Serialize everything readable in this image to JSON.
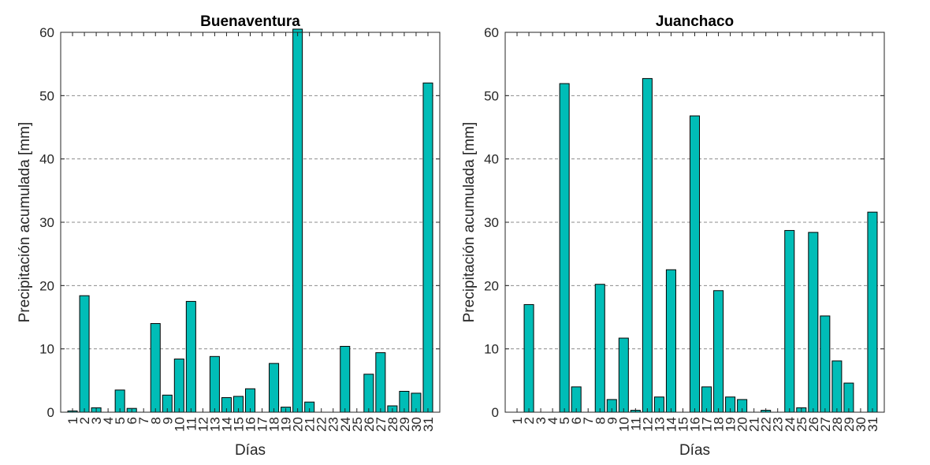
{
  "colors": {
    "bar_fill": "#00bdb7",
    "bar_stroke": "#000000",
    "grid": "#8c8c8c",
    "axis": "#262626"
  },
  "chart_data": [
    {
      "type": "bar",
      "title": "Buenaventura",
      "xlabel": "Días",
      "ylabel": "Precipitación acumulada [mm]",
      "ylim": [
        0,
        60
      ],
      "yticks": [
        0,
        10,
        20,
        30,
        40,
        50,
        60
      ],
      "grid": "horizontal-dashed",
      "categories": [
        "1",
        "2",
        "3",
        "4",
        "5",
        "6",
        "7",
        "8",
        "9",
        "10",
        "11",
        "12",
        "13",
        "14",
        "15",
        "16",
        "17",
        "18",
        "19",
        "20",
        "21",
        "22",
        "23",
        "24",
        "25",
        "26",
        "27",
        "28",
        "29",
        "30",
        "31"
      ],
      "values": [
        0.2,
        18.4,
        0.7,
        0,
        3.5,
        0.6,
        0,
        14.0,
        2.7,
        8.4,
        17.5,
        0,
        8.8,
        2.3,
        2.5,
        3.7,
        0,
        7.7,
        0.8,
        60.5,
        1.6,
        0,
        0,
        10.4,
        0,
        6.0,
        9.4,
        1.0,
        3.3,
        3.0,
        52.0
      ]
    },
    {
      "type": "bar",
      "title": "Juanchaco",
      "xlabel": "Días",
      "ylabel": "Precipitación acumulada [mm]",
      "ylim": [
        0,
        60
      ],
      "yticks": [
        0,
        10,
        20,
        30,
        40,
        50,
        60
      ],
      "grid": "horizontal-dashed",
      "categories": [
        "1",
        "2",
        "3",
        "4",
        "5",
        "6",
        "7",
        "8",
        "9",
        "10",
        "11",
        "12",
        "13",
        "14",
        "15",
        "16",
        "17",
        "18",
        "19",
        "20",
        "21",
        "22",
        "23",
        "24",
        "25",
        "26",
        "27",
        "28",
        "29",
        "30",
        "31"
      ],
      "values": [
        0,
        17.0,
        0,
        0,
        51.9,
        4.0,
        0,
        20.2,
        2.0,
        11.7,
        0.3,
        52.7,
        2.4,
        22.5,
        0,
        46.8,
        4.0,
        19.2,
        2.4,
        2.0,
        0,
        0.3,
        0,
        28.7,
        0.7,
        28.4,
        15.2,
        8.1,
        4.6,
        0,
        31.6
      ]
    }
  ]
}
